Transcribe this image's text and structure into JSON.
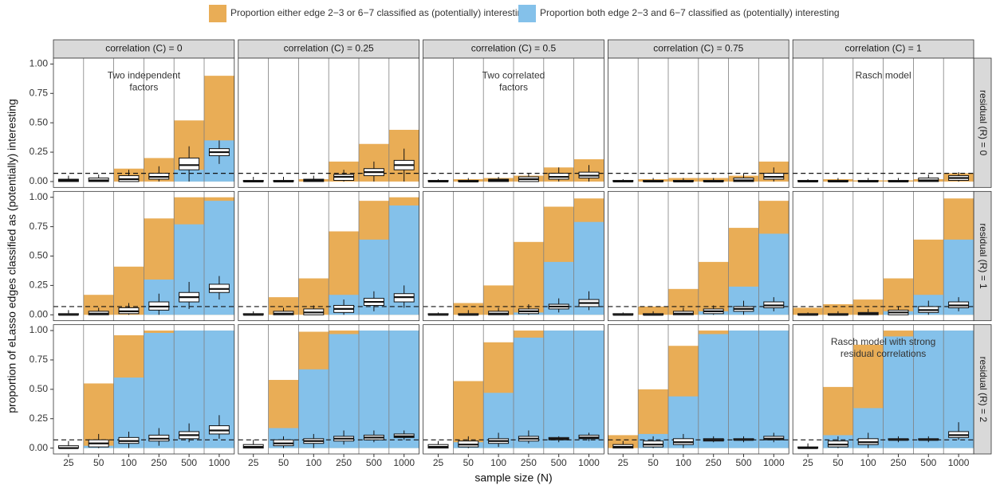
{
  "chart_data": {
    "type": "facet_bar_box",
    "legend": [
      {
        "name": "Proportion either edge 2−3 or 6−7 classified as (potentially) interesting",
        "color": "#e9ad56"
      },
      {
        "name": "Proportion both edge 2−3 and 6−7 classified as (potentially) interesting",
        "color": "#84c1ea"
      }
    ],
    "col_labels": [
      "correlation (C) = 0",
      "correlation (C) = 0.25",
      "correlation (C) = 0.5",
      "correlation (C) = 0.75",
      "correlation (C) = 1"
    ],
    "row_labels": [
      "residual (R) = 0",
      "residual (R) = 1",
      "residual (R) = 2"
    ],
    "categories": [
      "25",
      "50",
      "100",
      "250",
      "500",
      "1000"
    ],
    "xlabel": "sample size (N)",
    "ylabel": "proportion of eLasso edges classified as (potentially) interesting",
    "ylim": [
      -0.05,
      1.05
    ],
    "yticks": [
      {
        "value": 0,
        "label": "0.00"
      },
      {
        "value": 0.25,
        "label": "0.25"
      },
      {
        "value": 0.5,
        "label": "0.50"
      },
      {
        "value": 0.75,
        "label": "0.75"
      },
      {
        "value": 1,
        "label": "1.00"
      }
    ],
    "hline": 0.07,
    "panels": [
      [
        {
          "either": [
            0,
            0,
            0.11,
            0.2,
            0.52,
            0.9
          ],
          "both": [
            0,
            0,
            0,
            0,
            0.1,
            0.35
          ],
          "boxes": [
            [
              0,
              0,
              0.01,
              0.02,
              0.05
            ],
            [
              0,
              0,
              0.01,
              0.03,
              0.06
            ],
            [
              0,
              0,
              0.02,
              0.05,
              0.1
            ],
            [
              0,
              0.02,
              0.04,
              0.07,
              0.13
            ],
            [
              0,
              0.1,
              0.14,
              0.2,
              0.3
            ],
            [
              0.15,
              0.22,
              0.25,
              0.28,
              0.35
            ]
          ],
          "annotation": [
            "Two independent",
            "factors"
          ]
        },
        {
          "either": [
            0,
            0,
            0.02,
            0.17,
            0.32,
            0.44
          ],
          "both": [
            0,
            0,
            0,
            0,
            0,
            0
          ],
          "boxes": [
            [
              0,
              0,
              0,
              0.01,
              0.04
            ],
            [
              0,
              0,
              0,
              0.01,
              0.04
            ],
            [
              0,
              0,
              0.01,
              0.02,
              0.05
            ],
            [
              0,
              0.01,
              0.04,
              0.06,
              0.1
            ],
            [
              0,
              0.05,
              0.08,
              0.11,
              0.17
            ],
            [
              0,
              0.1,
              0.14,
              0.18,
              0.28
            ]
          ]
        },
        {
          "either": [
            0,
            0.02,
            0.03,
            0.05,
            0.12,
            0.19
          ],
          "both": [
            0,
            0,
            0,
            0,
            0,
            0
          ],
          "boxes": [
            [
              0,
              0,
              0,
              0.01,
              0.02
            ],
            [
              0,
              0,
              0,
              0.01,
              0.03
            ],
            [
              0,
              0,
              0.01,
              0.02,
              0.04
            ],
            [
              0,
              0,
              0.02,
              0.04,
              0.07
            ],
            [
              0,
              0.02,
              0.04,
              0.07,
              0.12
            ],
            [
              0,
              0.03,
              0.05,
              0.08,
              0.14
            ]
          ],
          "annotation": [
            "Two correlated",
            "factors"
          ]
        },
        {
          "either": [
            0,
            0.02,
            0.03,
            0.03,
            0.05,
            0.17
          ],
          "both": [
            0,
            0,
            0,
            0,
            0,
            0
          ],
          "boxes": [
            [
              0,
              0,
              0,
              0.01,
              0.02
            ],
            [
              0,
              0,
              0,
              0.01,
              0.03
            ],
            [
              0,
              0,
              0,
              0.01,
              0.03
            ],
            [
              0,
              0,
              0,
              0.01,
              0.03
            ],
            [
              0,
              0,
              0.01,
              0.03,
              0.07
            ],
            [
              0,
              0.02,
              0.04,
              0.07,
              0.12
            ]
          ]
        },
        {
          "either": [
            0,
            0.02,
            0.01,
            0.01,
            0.02,
            0.07
          ],
          "both": [
            0,
            0,
            0,
            0,
            0,
            0
          ],
          "boxes": [
            [
              0,
              0,
              0,
              0.01,
              0.02
            ],
            [
              0,
              0,
              0,
              0.01,
              0.03
            ],
            [
              0,
              0,
              0,
              0.01,
              0.03
            ],
            [
              0,
              0,
              0,
              0.01,
              0.03
            ],
            [
              0,
              0,
              0.01,
              0.03,
              0.06
            ],
            [
              0,
              0.01,
              0.03,
              0.05,
              0.08
            ]
          ],
          "annotation": [
            "Rasch model"
          ]
        }
      ],
      [
        {
          "either": [
            0,
            0.17,
            0.41,
            0.82,
            1.0,
            1.0
          ],
          "both": [
            0,
            0,
            0,
            0.3,
            0.77,
            0.97
          ],
          "boxes": [
            [
              0,
              0,
              0,
              0.01,
              0.04
            ],
            [
              0,
              0,
              0.01,
              0.03,
              0.06
            ],
            [
              0,
              0.01,
              0.03,
              0.06,
              0.1
            ],
            [
              0,
              0.04,
              0.07,
              0.11,
              0.18
            ],
            [
              0.05,
              0.11,
              0.15,
              0.19,
              0.28
            ],
            [
              0.13,
              0.19,
              0.22,
              0.26,
              0.33
            ]
          ]
        },
        {
          "either": [
            0,
            0.15,
            0.31,
            0.71,
            0.97,
            1.0
          ],
          "both": [
            0,
            0,
            0,
            0.17,
            0.64,
            0.93
          ],
          "boxes": [
            [
              0,
              0,
              0,
              0.01,
              0.03
            ],
            [
              0,
              0,
              0.01,
              0.03,
              0.06
            ],
            [
              0,
              0,
              0.02,
              0.05,
              0.08
            ],
            [
              0,
              0.02,
              0.05,
              0.08,
              0.13
            ],
            [
              0.03,
              0.08,
              0.11,
              0.14,
              0.2
            ],
            [
              0.06,
              0.11,
              0.15,
              0.18,
              0.25
            ]
          ]
        },
        {
          "either": [
            0,
            0.1,
            0.25,
            0.62,
            0.92,
            0.99
          ],
          "both": [
            0,
            0,
            0,
            0.02,
            0.45,
            0.79
          ],
          "boxes": [
            [
              0,
              0,
              0,
              0.01,
              0.02
            ],
            [
              0,
              0,
              0,
              0.01,
              0.04
            ],
            [
              0,
              0,
              0.01,
              0.03,
              0.06
            ],
            [
              0,
              0.01,
              0.03,
              0.05,
              0.09
            ],
            [
              0.02,
              0.05,
              0.07,
              0.09,
              0.14
            ],
            [
              0.04,
              0.07,
              0.1,
              0.13,
              0.2
            ]
          ]
        },
        {
          "either": [
            0,
            0.07,
            0.22,
            0.45,
            0.74,
            0.97
          ],
          "both": [
            0,
            0,
            0,
            0.03,
            0.24,
            0.69
          ],
          "boxes": [
            [
              0,
              0,
              0,
              0.01,
              0.02
            ],
            [
              0,
              0,
              0,
              0.01,
              0.03
            ],
            [
              0,
              0,
              0.01,
              0.03,
              0.06
            ],
            [
              0,
              0.01,
              0.03,
              0.05,
              0.08
            ],
            [
              0,
              0.03,
              0.05,
              0.07,
              0.12
            ],
            [
              0.03,
              0.06,
              0.08,
              0.11,
              0.15
            ]
          ]
        },
        {
          "either": [
            0.06,
            0.09,
            0.13,
            0.31,
            0.64,
            0.99
          ],
          "both": [
            0,
            0,
            0,
            0.03,
            0.17,
            0.64
          ],
          "boxes": [
            [
              0,
              0,
              0,
              0.01,
              0.02
            ],
            [
              0,
              0,
              0,
              0.01,
              0.03
            ],
            [
              0,
              0,
              0.01,
              0.02,
              0.05
            ],
            [
              0,
              0,
              0.02,
              0.04,
              0.07
            ],
            [
              0,
              0.02,
              0.04,
              0.07,
              0.12
            ],
            [
              0.03,
              0.06,
              0.08,
              0.11,
              0.15
            ]
          ]
        }
      ],
      [
        {
          "either": [
            0,
            0.55,
            0.96,
            1.0,
            1.0,
            1.0
          ],
          "both": [
            0,
            0.02,
            0.6,
            0.98,
            1.0,
            1.0
          ],
          "boxes": [
            [
              0,
              0,
              0,
              0.02,
              0.06
            ],
            [
              0,
              0.01,
              0.04,
              0.07,
              0.12
            ],
            [
              0,
              0.04,
              0.06,
              0.09,
              0.14
            ],
            [
              0.02,
              0.06,
              0.08,
              0.11,
              0.17
            ],
            [
              0.05,
              0.08,
              0.11,
              0.14,
              0.21
            ],
            [
              0.08,
              0.12,
              0.15,
              0.19,
              0.28
            ]
          ]
        },
        {
          "either": [
            0,
            0.58,
            0.99,
            1.0,
            1.0,
            1.0
          ],
          "both": [
            0,
            0.17,
            0.67,
            0.97,
            1.0,
            1.0
          ],
          "boxes": [
            [
              0,
              0,
              0.01,
              0.03,
              0.07
            ],
            [
              0,
              0.02,
              0.04,
              0.07,
              0.1
            ],
            [
              0,
              0.04,
              0.06,
              0.08,
              0.12
            ],
            [
              0.03,
              0.06,
              0.08,
              0.1,
              0.15
            ],
            [
              0.05,
              0.07,
              0.09,
              0.11,
              0.15
            ],
            [
              0.07,
              0.09,
              0.1,
              0.12,
              0.15
            ]
          ]
        },
        {
          "either": [
            0,
            0.57,
            0.9,
            1.0,
            1.0,
            1.0
          ],
          "both": [
            0,
            0.05,
            0.47,
            0.94,
            1.0,
            1.0
          ],
          "boxes": [
            [
              0,
              0,
              0.01,
              0.03,
              0.06
            ],
            [
              0,
              0.01,
              0.03,
              0.06,
              0.1
            ],
            [
              0.01,
              0.04,
              0.06,
              0.08,
              0.13
            ],
            [
              0.04,
              0.06,
              0.08,
              0.1,
              0.15
            ],
            [
              0.05,
              0.07,
              0.08,
              0.09,
              0.1
            ],
            [
              0.06,
              0.08,
              0.09,
              0.11,
              0.13
            ]
          ]
        },
        {
          "either": [
            0.11,
            0.5,
            0.87,
            1.0,
            1.0,
            1.0
          ],
          "both": [
            0,
            0.12,
            0.44,
            0.97,
            1.0,
            1.0
          ],
          "boxes": [
            [
              0,
              0,
              0.01,
              0.03,
              0.06
            ],
            [
              0,
              0.01,
              0.03,
              0.06,
              0.1
            ],
            [
              0,
              0.03,
              0.05,
              0.08,
              0.12
            ],
            [
              0.05,
              0.06,
              0.07,
              0.08,
              0.1
            ],
            [
              0.05,
              0.07,
              0.07,
              0.08,
              0.1
            ],
            [
              0.05,
              0.07,
              0.08,
              0.1,
              0.13
            ]
          ]
        },
        {
          "either": [
            0,
            0.52,
            0.88,
            1.0,
            1.0,
            1.0
          ],
          "both": [
            0,
            0.11,
            0.34,
            0.95,
            1.0,
            1.0
          ],
          "boxes": [
            [
              0,
              0,
              0,
              0.01,
              0.04
            ],
            [
              0,
              0.01,
              0.03,
              0.06,
              0.1
            ],
            [
              0,
              0.03,
              0.05,
              0.08,
              0.13
            ],
            [
              0.05,
              0.07,
              0.07,
              0.08,
              0.1
            ],
            [
              0.05,
              0.07,
              0.07,
              0.08,
              0.1
            ],
            [
              0.07,
              0.09,
              0.11,
              0.14,
              0.22
            ]
          ],
          "annotation": [
            "Rasch model with strong",
            "residual correlations"
          ]
        }
      ]
    ]
  }
}
